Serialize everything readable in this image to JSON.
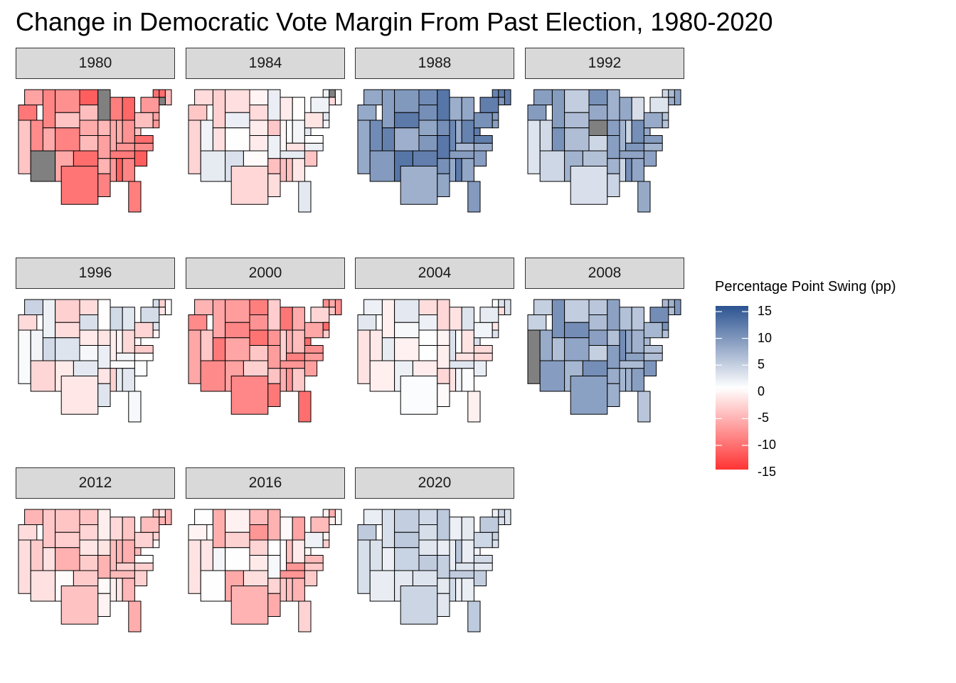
{
  "title": "Change in Democratic Vote Margin From Past Election, 1980-2020",
  "legend": {
    "title": "Percentage Point Swing (pp)",
    "ticks": [
      "15",
      "10",
      "5",
      "0",
      "-5",
      "-10",
      "-15"
    ],
    "colors": {
      "max": "#2c5391",
      "mid": "#ffffff",
      "min": "#ff3333",
      "na": "#808080"
    },
    "range": [
      -15,
      15
    ]
  },
  "panels": [
    {
      "label": "1980",
      "mean": -8,
      "spread": 4,
      "seed": 3,
      "na": 3
    },
    {
      "label": "1984",
      "mean": -1,
      "spread": 4,
      "seed": 11,
      "na": 1
    },
    {
      "label": "1988",
      "mean": 9,
      "spread": 3,
      "seed": 21,
      "na": 0
    },
    {
      "label": "1992",
      "mean": 6,
      "spread": 4,
      "seed": 33,
      "na": 1
    },
    {
      "label": "1996",
      "mean": 0,
      "spread": 4,
      "seed": 41,
      "na": 0
    },
    {
      "label": "2000",
      "mean": -7,
      "spread": 4,
      "seed": 55,
      "na": 0
    },
    {
      "label": "2004",
      "mean": 0,
      "spread": 3,
      "seed": 67,
      "na": 0
    },
    {
      "label": "2008",
      "mean": 7,
      "spread": 3,
      "seed": 71,
      "na": 1
    },
    {
      "label": "2012",
      "mean": -3,
      "spread": 3,
      "seed": 83,
      "na": 0
    },
    {
      "label": "2016",
      "mean": -3,
      "spread": 5,
      "seed": 97,
      "na": 0
    },
    {
      "label": "2020",
      "mean": 3,
      "spread": 2,
      "seed": 101,
      "na": 0
    }
  ]
}
